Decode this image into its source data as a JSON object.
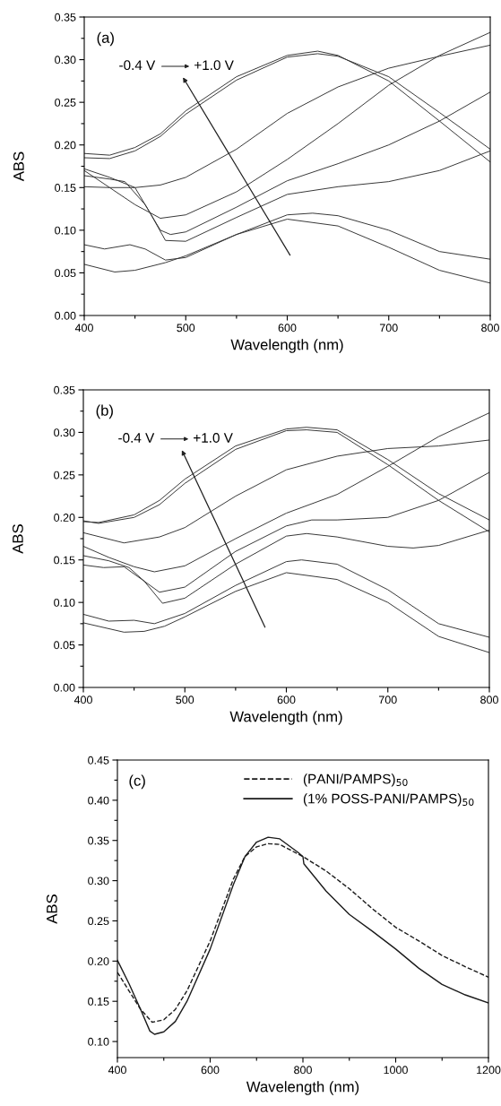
{
  "chart_data": [
    {
      "type": "line",
      "xlabel": "Wavelength (nm)",
      "ylabel": "ABS",
      "annotations": [
        "(a)",
        "-0.4 V",
        "+1.0 V"
      ],
      "xlim": [
        400,
        800
      ],
      "ylim": [
        0,
        0.35
      ],
      "legend": false,
      "grid": false,
      "line_style": "solid",
      "marker": "none",
      "xticks": [
        400,
        {
          "value": 450,
          "label": null
        },
        500,
        {
          "value": 550,
          "label": null
        },
        600,
        {
          "value": 650,
          "label": null
        },
        700,
        {
          "value": 750,
          "label": null
        },
        800
      ],
      "yticks": [
        {
          "value": 0,
          "label": "0.00"
        },
        {
          "value": 0.025,
          "label": null
        },
        {
          "value": 0.05,
          "label": "0.05"
        },
        {
          "value": 0.075,
          "label": null
        },
        {
          "value": 0.1,
          "label": "0.10"
        },
        {
          "value": 0.125,
          "label": null
        },
        {
          "value": 0.15,
          "label": "0.15"
        },
        {
          "value": 0.175,
          "label": null
        },
        {
          "value": 0.2,
          "label": "0.20"
        },
        {
          "value": 0.225,
          "label": null
        },
        {
          "value": 0.25,
          "label": "0.25"
        },
        {
          "value": 0.275,
          "label": null
        },
        {
          "value": 0.3,
          "label": "0.30"
        },
        {
          "value": 0.325,
          "label": null
        },
        {
          "value": 0.35,
          "label": "0.35"
        }
      ],
      "series": [
        {
          "color": "#333333",
          "x": [
            400,
            425,
            450,
            475,
            500,
            550,
            600,
            630,
            650,
            700,
            750,
            800
          ],
          "values": [
            0.19,
            0.188,
            0.197,
            0.213,
            0.24,
            0.28,
            0.305,
            0.31,
            0.305,
            0.275,
            0.228,
            0.18
          ]
        },
        {
          "color": "#333333",
          "x": [
            400,
            425,
            450,
            475,
            500,
            550,
            600,
            630,
            650,
            700,
            750,
            800
          ],
          "values": [
            0.185,
            0.184,
            0.193,
            0.21,
            0.236,
            0.276,
            0.303,
            0.307,
            0.304,
            0.28,
            0.238,
            0.195
          ]
        },
        {
          "color": "#333333",
          "x": [
            400,
            425,
            450,
            475,
            500,
            550,
            600,
            650,
            700,
            750,
            800
          ],
          "values": [
            0.151,
            0.15,
            0.15,
            0.153,
            0.162,
            0.195,
            0.237,
            0.268,
            0.29,
            0.304,
            0.317
          ]
        },
        {
          "color": "#333333",
          "x": [
            400,
            425,
            450,
            475,
            500,
            550,
            600,
            650,
            700,
            750,
            800
          ],
          "values": [
            0.17,
            0.15,
            0.13,
            0.114,
            0.118,
            0.145,
            0.183,
            0.225,
            0.27,
            0.305,
            0.332
          ]
        },
        {
          "color": "#333333",
          "x": [
            400,
            425,
            440,
            460,
            475,
            485,
            500,
            550,
            600,
            650,
            700,
            750,
            800
          ],
          "values": [
            0.164,
            0.16,
            0.157,
            0.13,
            0.1,
            0.095,
            0.098,
            0.127,
            0.158,
            0.178,
            0.2,
            0.228,
            0.262
          ]
        },
        {
          "color": "#333333",
          "x": [
            400,
            425,
            450,
            465,
            480,
            500,
            550,
            600,
            650,
            700,
            750,
            800
          ],
          "values": [
            0.172,
            0.162,
            0.15,
            0.12,
            0.088,
            0.087,
            0.115,
            0.142,
            0.151,
            0.157,
            0.17,
            0.193
          ]
        },
        {
          "color": "#333333",
          "x": [
            400,
            420,
            445,
            460,
            480,
            500,
            550,
            600,
            625,
            650,
            700,
            750,
            800
          ],
          "values": [
            0.083,
            0.078,
            0.083,
            0.078,
            0.065,
            0.068,
            0.095,
            0.118,
            0.12,
            0.117,
            0.1,
            0.075,
            0.066
          ]
        },
        {
          "color": "#333333",
          "x": [
            400,
            430,
            450,
            480,
            500,
            550,
            600,
            650,
            700,
            750,
            800
          ],
          "values": [
            0.06,
            0.051,
            0.053,
            0.062,
            0.07,
            0.095,
            0.113,
            0.105,
            0.08,
            0.053,
            0.038
          ]
        }
      ]
    },
    {
      "type": "line",
      "xlabel": "Wavelength (nm)",
      "ylabel": "ABS",
      "annotations": [
        "(b)",
        "-0.4 V",
        "+1.0 V"
      ],
      "xlim": [
        400,
        800
      ],
      "ylim": [
        0,
        0.35
      ],
      "legend": false,
      "grid": false,
      "line_style": "solid",
      "marker": "none",
      "xticks": [
        400,
        {
          "value": 450,
          "label": null
        },
        500,
        {
          "value": 550,
          "label": null
        },
        600,
        {
          "value": 650,
          "label": null
        },
        700,
        {
          "value": 750,
          "label": null
        },
        800
      ],
      "yticks": [
        {
          "value": 0,
          "label": "0.00"
        },
        {
          "value": 0.025,
          "label": null
        },
        {
          "value": 0.05,
          "label": "0.05"
        },
        {
          "value": 0.075,
          "label": null
        },
        {
          "value": 0.1,
          "label": "0.10"
        },
        {
          "value": 0.125,
          "label": null
        },
        {
          "value": 0.15,
          "label": "0.15"
        },
        {
          "value": 0.175,
          "label": null
        },
        {
          "value": 0.2,
          "label": "0.20"
        },
        {
          "value": 0.225,
          "label": null
        },
        {
          "value": 0.25,
          "label": "0.25"
        },
        {
          "value": 0.275,
          "label": null
        },
        {
          "value": 0.3,
          "label": "0.30"
        },
        {
          "value": 0.325,
          "label": null
        },
        {
          "value": 0.35,
          "label": "0.35"
        }
      ],
      "series": [
        {
          "color": "#333333",
          "x": [
            400,
            415,
            450,
            475,
            500,
            550,
            600,
            620,
            650,
            700,
            750,
            800
          ],
          "values": [
            0.196,
            0.193,
            0.2,
            0.215,
            0.24,
            0.28,
            0.302,
            0.303,
            0.3,
            0.262,
            0.22,
            0.183
          ]
        },
        {
          "color": "#333333",
          "x": [
            400,
            415,
            450,
            475,
            500,
            550,
            600,
            620,
            650,
            700,
            750,
            800
          ],
          "values": [
            0.195,
            0.194,
            0.203,
            0.22,
            0.245,
            0.284,
            0.304,
            0.306,
            0.303,
            0.268,
            0.228,
            0.197
          ]
        },
        {
          "color": "#333333",
          "x": [
            400,
            440,
            475,
            500,
            550,
            600,
            650,
            700,
            750,
            800
          ],
          "values": [
            0.182,
            0.17,
            0.177,
            0.188,
            0.225,
            0.256,
            0.272,
            0.281,
            0.284,
            0.291
          ]
        },
        {
          "color": "#333333",
          "x": [
            400,
            425,
            450,
            470,
            500,
            550,
            600,
            650,
            700,
            750,
            800
          ],
          "values": [
            0.166,
            0.153,
            0.142,
            0.136,
            0.143,
            0.175,
            0.205,
            0.227,
            0.26,
            0.295,
            0.323
          ]
        },
        {
          "color": "#333333",
          "x": [
            400,
            425,
            445,
            460,
            475,
            500,
            550,
            600,
            625,
            650,
            700,
            750,
            800
          ],
          "values": [
            0.155,
            0.149,
            0.141,
            0.125,
            0.112,
            0.118,
            0.16,
            0.19,
            0.197,
            0.197,
            0.2,
            0.22,
            0.253
          ]
        },
        {
          "color": "#333333",
          "x": [
            400,
            420,
            440,
            460,
            478,
            500,
            550,
            600,
            620,
            650,
            700,
            725,
            750,
            800
          ],
          "values": [
            0.144,
            0.141,
            0.142,
            0.125,
            0.099,
            0.105,
            0.145,
            0.178,
            0.181,
            0.177,
            0.166,
            0.164,
            0.167,
            0.185
          ]
        },
        {
          "color": "#333333",
          "x": [
            400,
            425,
            450,
            470,
            500,
            550,
            600,
            615,
            650,
            700,
            750,
            800
          ],
          "values": [
            0.086,
            0.078,
            0.079,
            0.075,
            0.087,
            0.12,
            0.148,
            0.15,
            0.145,
            0.115,
            0.075,
            0.059
          ]
        },
        {
          "color": "#333333",
          "x": [
            400,
            440,
            460,
            480,
            500,
            550,
            600,
            650,
            700,
            750,
            800
          ],
          "values": [
            0.076,
            0.065,
            0.066,
            0.072,
            0.083,
            0.113,
            0.135,
            0.127,
            0.1,
            0.06,
            0.041
          ]
        }
      ]
    },
    {
      "type": "line",
      "xlabel": "Wavelength (nm)",
      "ylabel": "ABS",
      "annotations": [
        "(c)"
      ],
      "xlim": [
        400,
        1200
      ],
      "ylim": [
        0.08,
        0.45
      ],
      "legend": "top right",
      "grid": false,
      "marker": "none",
      "xticks": [
        400,
        {
          "value": 500,
          "label": null
        },
        600,
        {
          "value": 700,
          "label": null
        },
        800,
        {
          "value": 900,
          "label": null
        },
        1000,
        {
          "value": 1100,
          "label": null
        },
        1200
      ],
      "yticks": [
        {
          "value": 0.1,
          "label": "0.10"
        },
        {
          "value": 0.125,
          "label": null
        },
        {
          "value": 0.15,
          "label": "0.15"
        },
        {
          "value": 0.175,
          "label": null
        },
        {
          "value": 0.2,
          "label": "0.20"
        },
        {
          "value": 0.225,
          "label": null
        },
        {
          "value": 0.25,
          "label": "0.25"
        },
        {
          "value": 0.275,
          "label": null
        },
        {
          "value": 0.3,
          "label": "0.30"
        },
        {
          "value": 0.325,
          "label": null
        },
        {
          "value": 0.35,
          "label": "0.35"
        },
        {
          "value": 0.375,
          "label": null
        },
        {
          "value": 0.4,
          "label": "0.40"
        },
        {
          "value": 0.425,
          "label": null
        },
        {
          "value": 0.45,
          "label": "0.45"
        }
      ],
      "series": [
        {
          "name": "(PANI/PAMPS)$_{50}$",
          "color": "#1a1a1a",
          "line_style": "dashed",
          "x": [
            400,
            425,
            450,
            475,
            500,
            525,
            550,
            600,
            650,
            675,
            700,
            725,
            750,
            800,
            850,
            900,
            950,
            1000,
            1050,
            1100,
            1150,
            1200
          ],
          "values": [
            0.186,
            0.163,
            0.14,
            0.124,
            0.127,
            0.14,
            0.163,
            0.225,
            0.302,
            0.33,
            0.342,
            0.346,
            0.345,
            0.33,
            0.312,
            0.29,
            0.265,
            0.242,
            0.225,
            0.207,
            0.193,
            0.18
          ]
        },
        {
          "name": "(1% POSS-PANI/PAMPS)$_{50}$",
          "color": "#1a1a1a",
          "line_style": "solid",
          "x": [
            400,
            425,
            450,
            470,
            480,
            500,
            525,
            550,
            600,
            650,
            675,
            700,
            725,
            750,
            790,
            800,
            802,
            850,
            900,
            950,
            1000,
            1050,
            1100,
            1150,
            1200
          ],
          "values": [
            0.201,
            0.172,
            0.14,
            0.113,
            0.109,
            0.112,
            0.125,
            0.15,
            0.215,
            0.295,
            0.33,
            0.348,
            0.354,
            0.352,
            0.335,
            0.33,
            0.321,
            0.287,
            0.258,
            0.237,
            0.215,
            0.191,
            0.171,
            0.158,
            0.148
          ]
        }
      ]
    }
  ]
}
